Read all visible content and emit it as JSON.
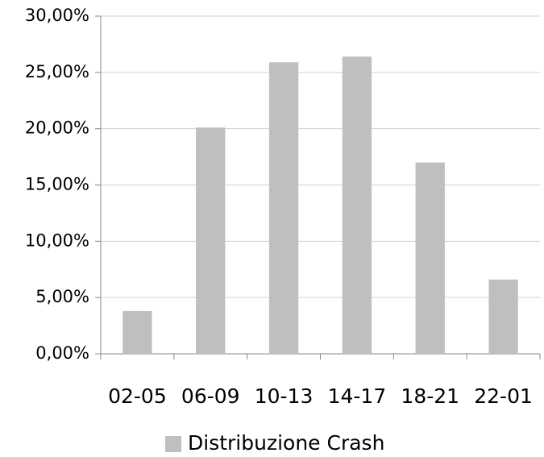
{
  "chart_data": {
    "type": "bar",
    "categories": [
      "02-05",
      "06-09",
      "10-13",
      "14-17",
      "18-21",
      "22-01"
    ],
    "series": [
      {
        "name": "Distribuzione Crash",
        "color": "#bfbfbf",
        "values": [
          3.8,
          20.1,
          25.9,
          26.4,
          17.0,
          6.6
        ]
      }
    ],
    "ylim": [
      0,
      30
    ],
    "yticks": [
      {
        "value": 0,
        "label": "0,00%"
      },
      {
        "value": 5,
        "label": "5,00%"
      },
      {
        "value": 10,
        "label": "10,00%"
      },
      {
        "value": 15,
        "label": "15,00%"
      },
      {
        "value": 20,
        "label": "20,00%"
      },
      {
        "value": 25,
        "label": "25,00%"
      },
      {
        "value": 30,
        "label": "30,00%"
      }
    ],
    "grid": true,
    "legend": "bottom"
  }
}
